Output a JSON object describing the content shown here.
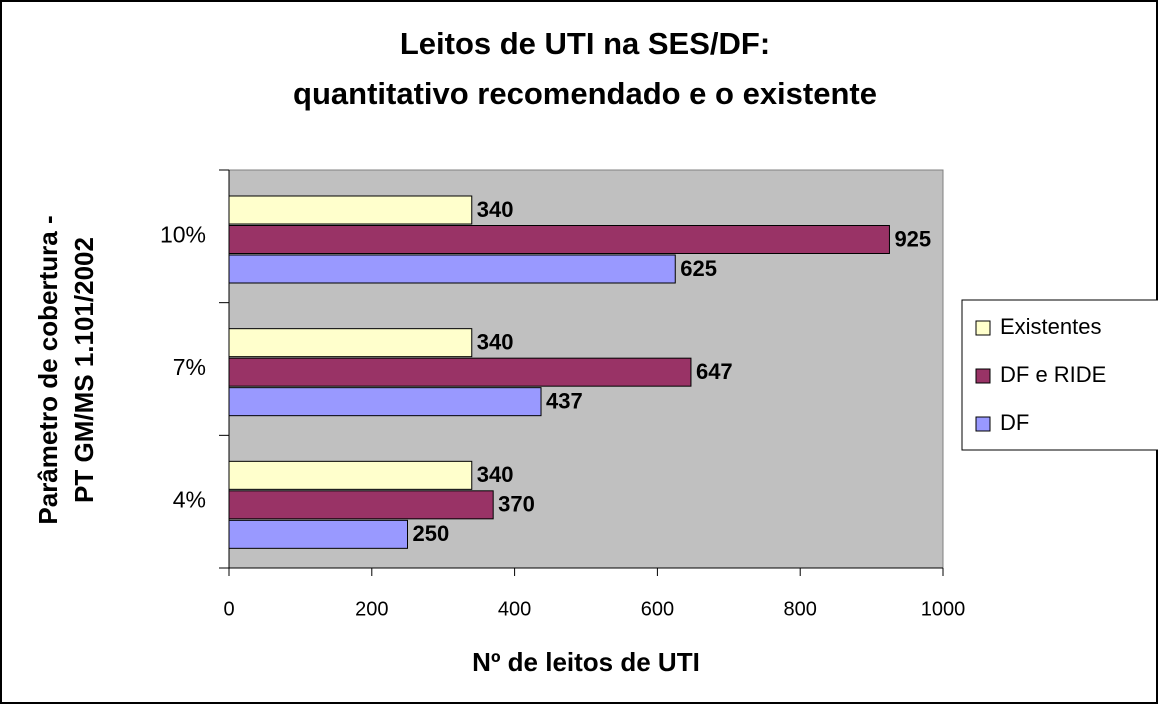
{
  "chart_data": {
    "type": "barh",
    "title": [
      "Leitos de UTI na SES/DF:",
      "quantitativo recomendado e o existente"
    ],
    "x_label": "Nº de leitos de UTI",
    "y_label": [
      "Parâmetro de cobertura -",
      "PT GM/MS 1.101/2002"
    ],
    "categories": [
      "4%",
      "7%",
      "10%"
    ],
    "series": [
      {
        "name": "Existentes",
        "color": "#ffffcc",
        "values": [
          340,
          340,
          340
        ]
      },
      {
        "name": "DF e RIDE",
        "color": "#993366",
        "values": [
          370,
          647,
          925
        ]
      },
      {
        "name": "DF",
        "color": "#9999ff",
        "values": [
          250,
          437,
          625
        ]
      }
    ],
    "xlim": [
      0,
      1000
    ],
    "xticks": [
      0,
      200,
      400,
      600,
      800,
      1000
    ],
    "plot_background": "#c0c0c0",
    "legend": "right"
  }
}
